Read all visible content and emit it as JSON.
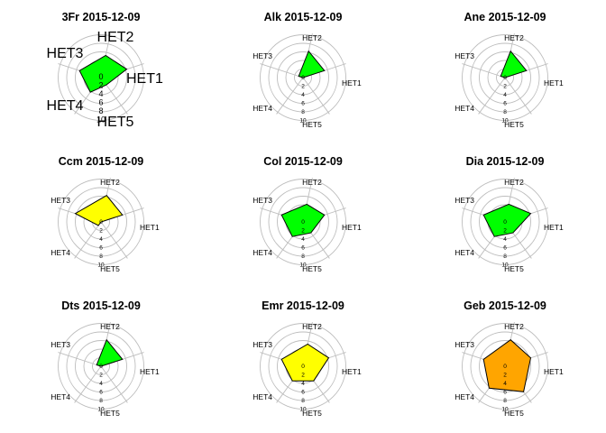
{
  "chart_data": [
    {
      "type": "radar",
      "title": "3Fr 2015-12-09",
      "axes": [
        "HET1",
        "HET2",
        "HET3",
        "HET4",
        "HET5"
      ],
      "values": [
        6,
        5,
        5,
        4,
        2
      ],
      "ticks": [
        "0",
        "2",
        "4",
        "6",
        "8",
        "10"
      ],
      "range": [
        0,
        10
      ],
      "fill": "#00ff00"
    },
    {
      "type": "radar",
      "title": "Alk 2015-12-09",
      "axes": [
        "HET1",
        "HET2",
        "HET3",
        "HET4",
        "HET5"
      ],
      "values": [
        5,
        6,
        1,
        0,
        0
      ],
      "ticks": [
        "0",
        "2",
        "4",
        "6",
        "8",
        "10"
      ],
      "range": [
        0,
        10
      ],
      "fill": "#00ff00"
    },
    {
      "type": "radar",
      "title": "Ane 2015-12-09",
      "axes": [
        "HET1",
        "HET2",
        "HET3",
        "HET4",
        "HET5"
      ],
      "values": [
        5,
        6,
        1,
        0,
        0
      ],
      "ticks": [
        "0",
        "2",
        "4",
        "6",
        "8",
        "10"
      ],
      "range": [
        0,
        10
      ],
      "fill": "#00ff00"
    },
    {
      "type": "radar",
      "title": "Ccm 2015-12-09",
      "axes": [
        "HET1",
        "HET2",
        "HET3",
        "HET4",
        "HET5"
      ],
      "values": [
        5,
        6,
        6,
        1,
        0
      ],
      "ticks": [
        "0",
        "2",
        "4",
        "6",
        "8",
        "10"
      ],
      "range": [
        0,
        10
      ],
      "fill": "#ffff00"
    },
    {
      "type": "radar",
      "title": "Col 2015-12-09",
      "axes": [
        "HET1",
        "HET2",
        "HET3",
        "HET4",
        "HET5"
      ],
      "values": [
        5,
        4,
        5,
        4,
        3
      ],
      "ticks": [
        "0",
        "2",
        "4",
        "6",
        "8",
        "10"
      ],
      "range": [
        0,
        10
      ],
      "fill": "#00ff00"
    },
    {
      "type": "radar",
      "title": "Dia 2015-12-09",
      "axes": [
        "HET1",
        "HET2",
        "HET3",
        "HET4",
        "HET5"
      ],
      "values": [
        6,
        4,
        5,
        4,
        3
      ],
      "ticks": [
        "0",
        "2",
        "4",
        "6",
        "8",
        "10"
      ],
      "range": [
        0,
        10
      ],
      "fill": "#00ff00"
    },
    {
      "type": "radar",
      "title": "Dts 2015-12-09",
      "axes": [
        "HET1",
        "HET2",
        "HET3",
        "HET4",
        "HET5"
      ],
      "values": [
        5,
        6,
        1,
        0,
        0
      ],
      "ticks": [
        "0",
        "2",
        "4",
        "6",
        "8",
        "10"
      ],
      "range": [
        0,
        10
      ],
      "fill": "#00ff00"
    },
    {
      "type": "radar",
      "title": "Emr 2015-12-09",
      "axes": [
        "HET1",
        "HET2",
        "HET3",
        "HET4",
        "HET5"
      ],
      "values": [
        6,
        5,
        5,
        4,
        4
      ],
      "ticks": [
        "0",
        "2",
        "4",
        "6",
        "8",
        "10"
      ],
      "range": [
        0,
        10
      ],
      "fill": "#ffff00"
    },
    {
      "type": "radar",
      "title": "Geb 2015-12-09",
      "axes": [
        "HET1",
        "HET2",
        "HET3",
        "HET4",
        "HET5"
      ],
      "values": [
        6,
        6,
        5,
        6,
        7
      ],
      "ticks": [
        "0",
        "2",
        "4",
        "6",
        "8",
        "10"
      ],
      "range": [
        0,
        10
      ],
      "fill": "#ffa500"
    }
  ]
}
